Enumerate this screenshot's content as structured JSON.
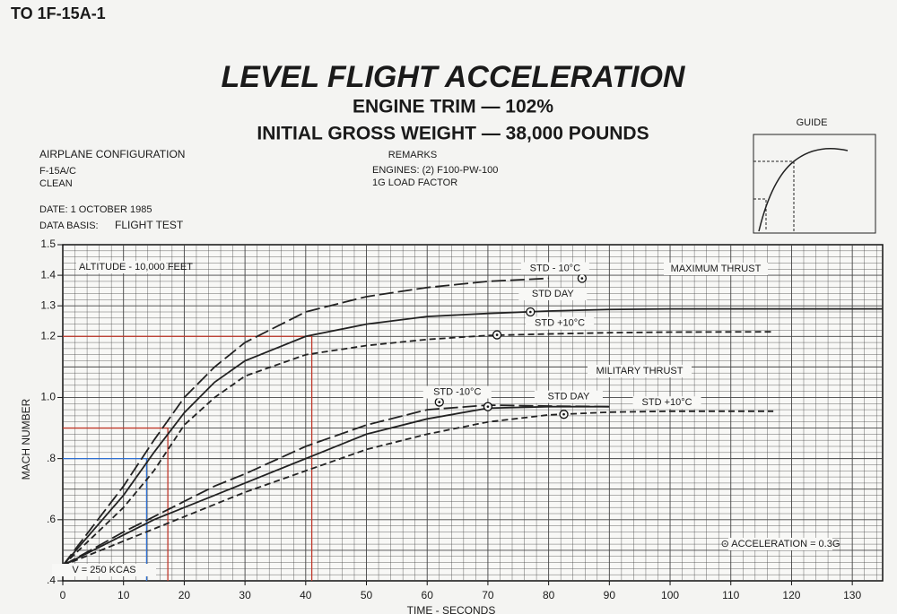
{
  "header": "TO 1F-15A-1",
  "chart_data": {
    "type": "line",
    "title": "LEVEL FLIGHT ACCELERATION",
    "subtitle": [
      "ENGINE TRIM — 102%",
      "INITIAL GROSS WEIGHT — 38,000 POUNDS"
    ],
    "configuration": {
      "heading": "AIRPLANE CONFIGURATION",
      "lines": [
        "F-15A/C",
        "CLEAN"
      ]
    },
    "remarks": {
      "heading": "REMARKS",
      "lines": [
        "ENGINES: (2) F100-PW-100",
        "1G LOAD FACTOR"
      ]
    },
    "date": "DATE:  1 OCTOBER 1985",
    "data_basis": {
      "label": "DATA BASIS:",
      "value": "FLIGHT TEST"
    },
    "guide_label": "GUIDE",
    "x_label": "TIME - SECONDS",
    "y_label": "MACH NUMBER",
    "xlim": [
      0,
      135
    ],
    "ylim": [
      0.4,
      1.5
    ],
    "xticks": [
      0,
      10,
      20,
      30,
      40,
      50,
      60,
      70,
      80,
      90,
      100,
      110,
      120,
      130
    ],
    "yticks": [
      {
        "value": 0.4,
        "label": ".4"
      },
      {
        "value": 0.6,
        "label": ".6"
      },
      {
        "value": 0.8,
        "label": ".8"
      },
      {
        "value": 1,
        "label": "1.0"
      },
      1.2,
      1.3,
      1.4,
      1.5
    ],
    "grid": true,
    "annotations": [
      "ALTITUDE - 10,000 FEET",
      "MAXIMUM THRUST",
      "MILITARY THRUST",
      "V = 250 KCAS",
      "⊙ ACCELERATION = 0.3G"
    ],
    "x": [
      0,
      10,
      15,
      20,
      25,
      30,
      40,
      50,
      60,
      70,
      80,
      90,
      100,
      117,
      135
    ],
    "series": [
      {
        "name": "STD - 10°C",
        "color": "#222",
        "dash": "long",
        "values": [
          0.45,
          0.71,
          0.86,
          1.0,
          1.1,
          1.18,
          1.28,
          1.33,
          1.36,
          1.38,
          1.39,
          null,
          null,
          null,
          null
        ],
        "marker": [
          85.5,
          1.39
        ]
      },
      {
        "name": "STD DAY",
        "color": "#222",
        "dash": "solid",
        "values": [
          0.45,
          0.68,
          0.82,
          0.95,
          1.05,
          1.12,
          1.2,
          1.24,
          1.265,
          1.275,
          1.283,
          1.288,
          1.29,
          1.29,
          1.29
        ],
        "marker": [
          77,
          1.28
        ]
      },
      {
        "name": "STD +10°C",
        "color": "#222",
        "dash": "short",
        "values": [
          0.45,
          0.64,
          0.76,
          0.91,
          1.0,
          1.07,
          1.14,
          1.17,
          1.19,
          1.203,
          1.208,
          1.212,
          1.214,
          1.215,
          null
        ],
        "marker": [
          71.5,
          1.205
        ]
      },
      {
        "name": "STD -10°C",
        "color": "#222",
        "dash": "long",
        "values": [
          0.45,
          0.56,
          0.61,
          0.66,
          0.71,
          0.75,
          0.84,
          0.91,
          0.96,
          0.975,
          0.972,
          0.97,
          null,
          null,
          null
        ],
        "marker": [
          62,
          0.985
        ]
      },
      {
        "name": "STD DAY",
        "color": "#222",
        "dash": "solid",
        "values": [
          0.45,
          0.55,
          0.6,
          0.64,
          0.68,
          0.72,
          0.8,
          0.88,
          0.93,
          0.965,
          0.97,
          0.97,
          null,
          null,
          null
        ],
        "marker": [
          70,
          0.97
        ]
      },
      {
        "name": "STD +10°C",
        "color": "#222",
        "dash": "short",
        "values": [
          0.45,
          0.53,
          0.57,
          0.61,
          0.65,
          0.69,
          0.76,
          0.83,
          0.88,
          0.92,
          0.943,
          0.952,
          0.955,
          0.955,
          null
        ],
        "marker": [
          82.5,
          0.945
        ]
      }
    ],
    "reference_lines": [
      {
        "color": "#c0392b",
        "x": 41,
        "y": 1.2
      },
      {
        "color": "#c0392b",
        "x": 17.3,
        "y": 0.9
      },
      {
        "color": "#2e6fd1",
        "x": 13.8,
        "y": 0.8
      }
    ]
  }
}
